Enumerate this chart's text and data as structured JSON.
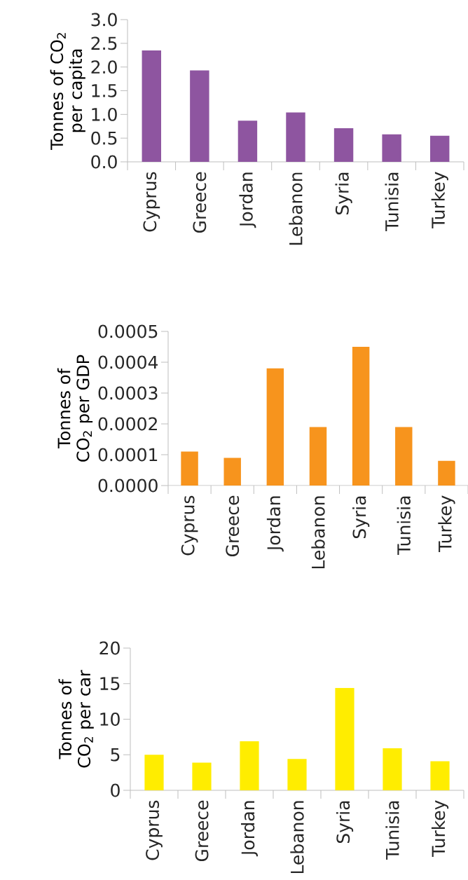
{
  "chart_data": [
    {
      "type": "bar",
      "ylabel": "Tonnes of CO$_{2}$ per capita",
      "categories": [
        "Cyprus",
        "Greece",
        "Jordan",
        "Lebanon",
        "Syria",
        "Tunisia",
        "Turkey"
      ],
      "values": [
        2.35,
        1.93,
        0.87,
        1.04,
        0.71,
        0.58,
        0.55
      ],
      "color": "#8e55a0",
      "ylim": [
        0,
        3
      ],
      "yticks": [
        {
          "value": 0,
          "label": "0.0"
        },
        {
          "value": 0.5,
          "label": "0.5"
        },
        {
          "value": 1,
          "label": "1.0"
        },
        {
          "value": 1.5,
          "label": "1.5"
        },
        {
          "value": 2,
          "label": "2.0"
        },
        {
          "value": 2.5,
          "label": "2.5"
        },
        {
          "value": 3,
          "label": "3.0"
        }
      ]
    },
    {
      "type": "bar",
      "ylabel": "Tonnes of CO$_{2}$ per GDP",
      "categories": [
        "Cyprus",
        "Greece",
        "Jordan",
        "Lebanon",
        "Syria",
        "Tunisia",
        "Turkey"
      ],
      "values": [
        0.00011,
        9e-05,
        0.00038,
        0.00019,
        0.00045,
        0.00019,
        8e-05
      ],
      "color": "#f7941d",
      "ylim": [
        0,
        0.0005
      ],
      "yticks": [
        {
          "value": 0,
          "label": "0.0000"
        },
        {
          "value": 0.0001,
          "label": "0.0001"
        },
        {
          "value": 0.0002,
          "label": "0.0002"
        },
        {
          "value": 0.0003,
          "label": "0.0003"
        },
        {
          "value": 0.0004,
          "label": "0.0004"
        },
        {
          "value": 0.0005,
          "label": "0.0005"
        }
      ]
    },
    {
      "type": "bar",
      "ylabel": "Tonnes of CO$_{2}$ per car",
      "categories": [
        "Cyprus",
        "Greece",
        "Jordan",
        "Lebanon",
        "Syria",
        "Tunisia",
        "Turkey"
      ],
      "values": [
        5.0,
        3.9,
        6.9,
        4.4,
        14.4,
        5.9,
        4.1
      ],
      "color": "#ffed00",
      "ylim": [
        0,
        20
      ],
      "yticks": [
        0,
        5,
        10,
        15,
        20
      ]
    }
  ]
}
